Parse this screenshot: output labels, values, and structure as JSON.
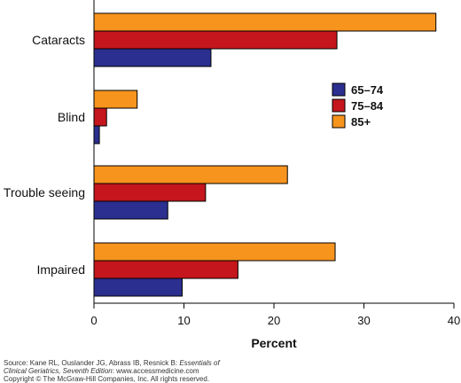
{
  "chart_data": {
    "type": "bar",
    "orientation": "horizontal",
    "categories": [
      "Cataracts",
      "Blind",
      "Trouble seeing",
      "Impaired"
    ],
    "series": [
      {
        "name": "65–74",
        "color": "#2b2f8f",
        "values": [
          13,
          0.6,
          8.2,
          9.8
        ]
      },
      {
        "name": "75–84",
        "color": "#c4161c",
        "values": [
          27,
          1.4,
          12.4,
          16
        ]
      },
      {
        "name": "85+",
        "color": "#f7941d",
        "values": [
          38,
          4.8,
          21.5,
          26.8
        ]
      }
    ],
    "xlabel": "Percent",
    "xlim": [
      0,
      40
    ],
    "xticks": [
      0,
      10,
      20,
      30,
      40
    ],
    "legend_position": "right",
    "grid": false
  },
  "source": {
    "line1_prefix": "Source: Kane RL, Ouslander JG, Abrass IB, Resnick B: ",
    "line1_title": "Essentials of",
    "line2_title": "Clinical Geriatrics, Seventh Edition",
    "line2_suffix": ": www.accessmedicine.com",
    "line3": "Copyright © The McGraw-Hill Companies, Inc. All rights reserved."
  }
}
